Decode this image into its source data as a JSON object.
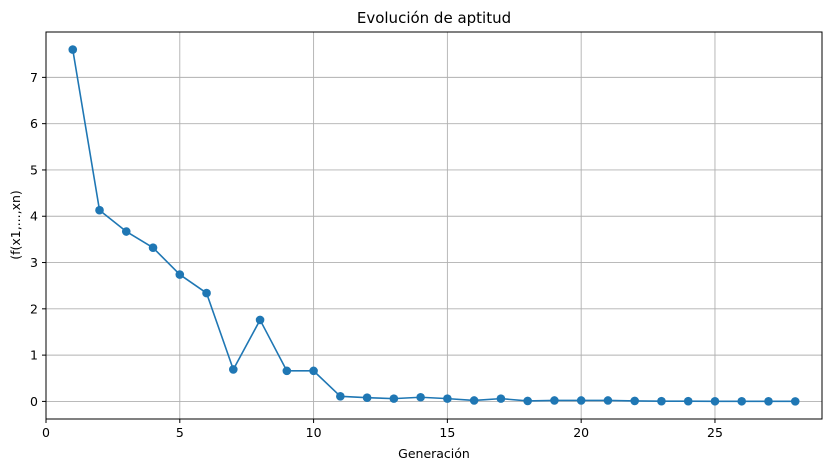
{
  "chart_data": {
    "type": "line",
    "title": "Evolución de aptitud",
    "xlabel": "Generación",
    "ylabel": "(f(x1,...,xn)",
    "xlim": [
      0,
      29
    ],
    "ylim": [
      -0.38,
      7.98
    ],
    "xticks": [
      0,
      5,
      10,
      15,
      20,
      25
    ],
    "yticks": [
      0,
      1,
      2,
      3,
      4,
      5,
      6,
      7
    ],
    "grid": true,
    "legend": "none",
    "colors": {
      "series": "#1f77b4",
      "grid": "#b0b0b0",
      "axis": "#000000"
    },
    "series": [
      {
        "marker": "circle",
        "x": [
          1,
          2,
          3,
          4,
          5,
          6,
          7,
          8,
          9,
          10,
          11,
          12,
          13,
          14,
          15,
          16,
          17,
          18,
          19,
          20,
          21,
          22,
          23,
          24,
          25,
          26,
          27,
          28
        ],
        "y": [
          7.6,
          4.13,
          3.67,
          3.32,
          2.74,
          2.34,
          0.69,
          1.76,
          0.66,
          0.66,
          0.11,
          0.08,
          0.06,
          0.09,
          0.06,
          0.02,
          0.06,
          0.01,
          0.02,
          0.02,
          0.02,
          0.01,
          0.005,
          0.004,
          0.003,
          0.003,
          0.002,
          0.001
        ]
      }
    ]
  }
}
